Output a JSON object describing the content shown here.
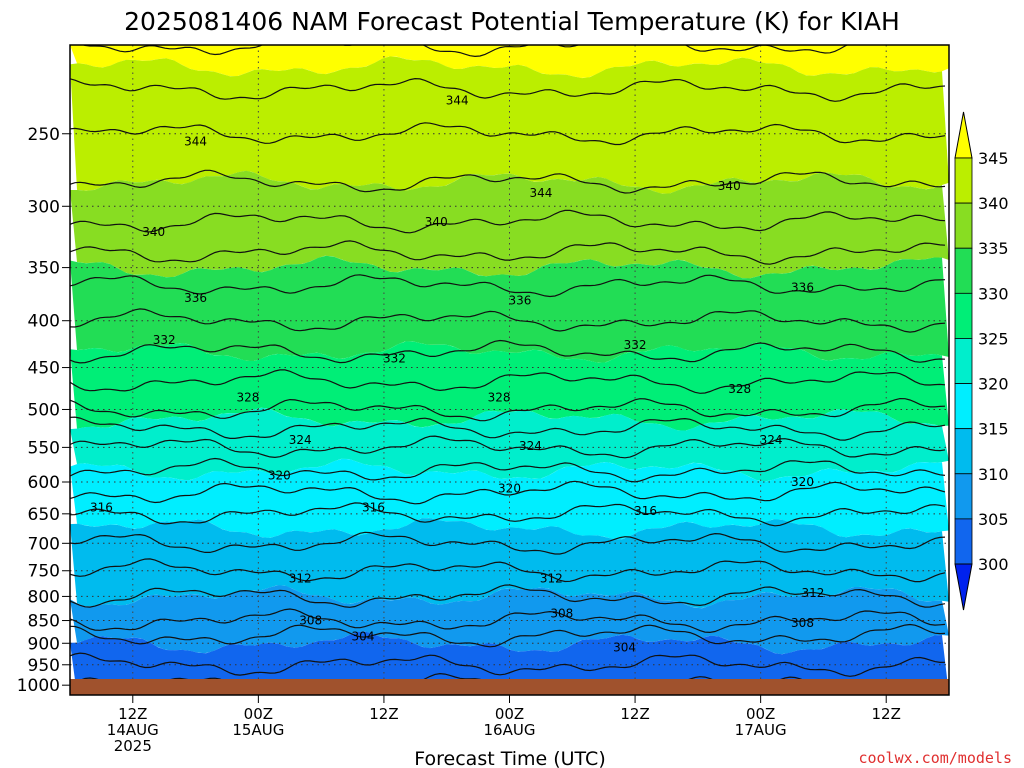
{
  "chart_data": {
    "type": "heatmap",
    "title": "2025081406 NAM Forecast Potential Temperature (K) for KIAH",
    "xlabel": "Forecast Time (UTC)",
    "ylabel": "",
    "credit": "coolwx.com/models",
    "y_scale": "log",
    "y_reversed": true,
    "y_ticks": [
      250,
      300,
      350,
      400,
      450,
      500,
      550,
      600,
      650,
      700,
      750,
      800,
      850,
      900,
      950,
      1000
    ],
    "x_ticks": [
      {
        "lines": [
          "12Z",
          "14AUG",
          "2025"
        ]
      },
      {
        "lines": [
          "00Z",
          "15AUG"
        ]
      },
      {
        "lines": [
          "12Z"
        ]
      },
      {
        "lines": [
          "00Z",
          "16AUG"
        ]
      },
      {
        "lines": [
          "12Z"
        ]
      },
      {
        "lines": [
          "00Z",
          "17AUG"
        ]
      },
      {
        "lines": [
          "12Z"
        ]
      }
    ],
    "x_tick_hours": [
      6,
      18,
      30,
      42,
      54,
      66,
      78
    ],
    "x_range_hours": [
      0,
      84
    ],
    "y_range_hpa": [
      1025,
      200
    ],
    "colorbar": {
      "ticks": [
        345,
        340,
        335,
        330,
        325,
        320,
        315,
        310,
        305,
        300
      ],
      "bins": [
        {
          "value": 347.5,
          "color": "#ffff00"
        },
        {
          "value": 342.5,
          "color": "#bbee00"
        },
        {
          "value": 337.5,
          "color": "#88dd22"
        },
        {
          "value": 332.5,
          "color": "#22dd55"
        },
        {
          "value": 327.5,
          "color": "#00ee77"
        },
        {
          "value": 322.5,
          "color": "#00eecc"
        },
        {
          "value": 317.5,
          "color": "#00eeff"
        },
        {
          "value": 312.5,
          "color": "#00bbee"
        },
        {
          "value": 307.5,
          "color": "#1199ee"
        },
        {
          "value": 302.5,
          "color": "#1166ee"
        },
        {
          "value": 297.5,
          "color": "#0022ee"
        }
      ]
    },
    "profile": [
      {
        "p": 1000,
        "theta": 302
      },
      {
        "p": 950,
        "theta": 304
      },
      {
        "p": 900,
        "theta": 305
      },
      {
        "p": 850,
        "theta": 308
      },
      {
        "p": 800,
        "theta": 310
      },
      {
        "p": 750,
        "theta": 312
      },
      {
        "p": 700,
        "theta": 314
      },
      {
        "p": 650,
        "theta": 316
      },
      {
        "p": 600,
        "theta": 319
      },
      {
        "p": 550,
        "theta": 322
      },
      {
        "p": 500,
        "theta": 326
      },
      {
        "p": 450,
        "theta": 329
      },
      {
        "p": 400,
        "theta": 332
      },
      {
        "p": 350,
        "theta": 335
      },
      {
        "p": 300,
        "theta": 339
      },
      {
        "p": 250,
        "theta": 342
      },
      {
        "p": 200,
        "theta": 346
      }
    ],
    "contour_labels": [
      {
        "text": "344",
        "hour": 45,
        "p": 290
      },
      {
        "text": "344",
        "hour": 37,
        "p": 230
      },
      {
        "text": "344",
        "hour": 12,
        "p": 255
      },
      {
        "text": "340",
        "hour": 8,
        "p": 320
      },
      {
        "text": "340",
        "hour": 35,
        "p": 312
      },
      {
        "text": "340",
        "hour": 63,
        "p": 285
      },
      {
        "text": "336",
        "hour": 12,
        "p": 378
      },
      {
        "text": "336",
        "hour": 43,
        "p": 380
      },
      {
        "text": "336",
        "hour": 70,
        "p": 368
      },
      {
        "text": "332",
        "hour": 9,
        "p": 420
      },
      {
        "text": "332",
        "hour": 31,
        "p": 440
      },
      {
        "text": "332",
        "hour": 54,
        "p": 425
      },
      {
        "text": "328",
        "hour": 17,
        "p": 485
      },
      {
        "text": "328",
        "hour": 41,
        "p": 485
      },
      {
        "text": "328",
        "hour": 64,
        "p": 475
      },
      {
        "text": "324",
        "hour": 22,
        "p": 540
      },
      {
        "text": "324",
        "hour": 44,
        "p": 548
      },
      {
        "text": "324",
        "hour": 67,
        "p": 540
      },
      {
        "text": "320",
        "hour": 20,
        "p": 590
      },
      {
        "text": "320",
        "hour": 42,
        "p": 610
      },
      {
        "text": "320",
        "hour": 70,
        "p": 600
      },
      {
        "text": "316",
        "hour": 3,
        "p": 640
      },
      {
        "text": "316",
        "hour": 29,
        "p": 640
      },
      {
        "text": "316",
        "hour": 55,
        "p": 645
      },
      {
        "text": "312",
        "hour": 22,
        "p": 765
      },
      {
        "text": "312",
        "hour": 46,
        "p": 765
      },
      {
        "text": "312",
        "hour": 71,
        "p": 793
      },
      {
        "text": "308",
        "hour": 23,
        "p": 850
      },
      {
        "text": "308",
        "hour": 47,
        "p": 835
      },
      {
        "text": "308",
        "hour": 70,
        "p": 855
      },
      {
        "text": "304",
        "hour": 28,
        "p": 885
      },
      {
        "text": "304",
        "hour": 53,
        "p": 910
      }
    ]
  }
}
